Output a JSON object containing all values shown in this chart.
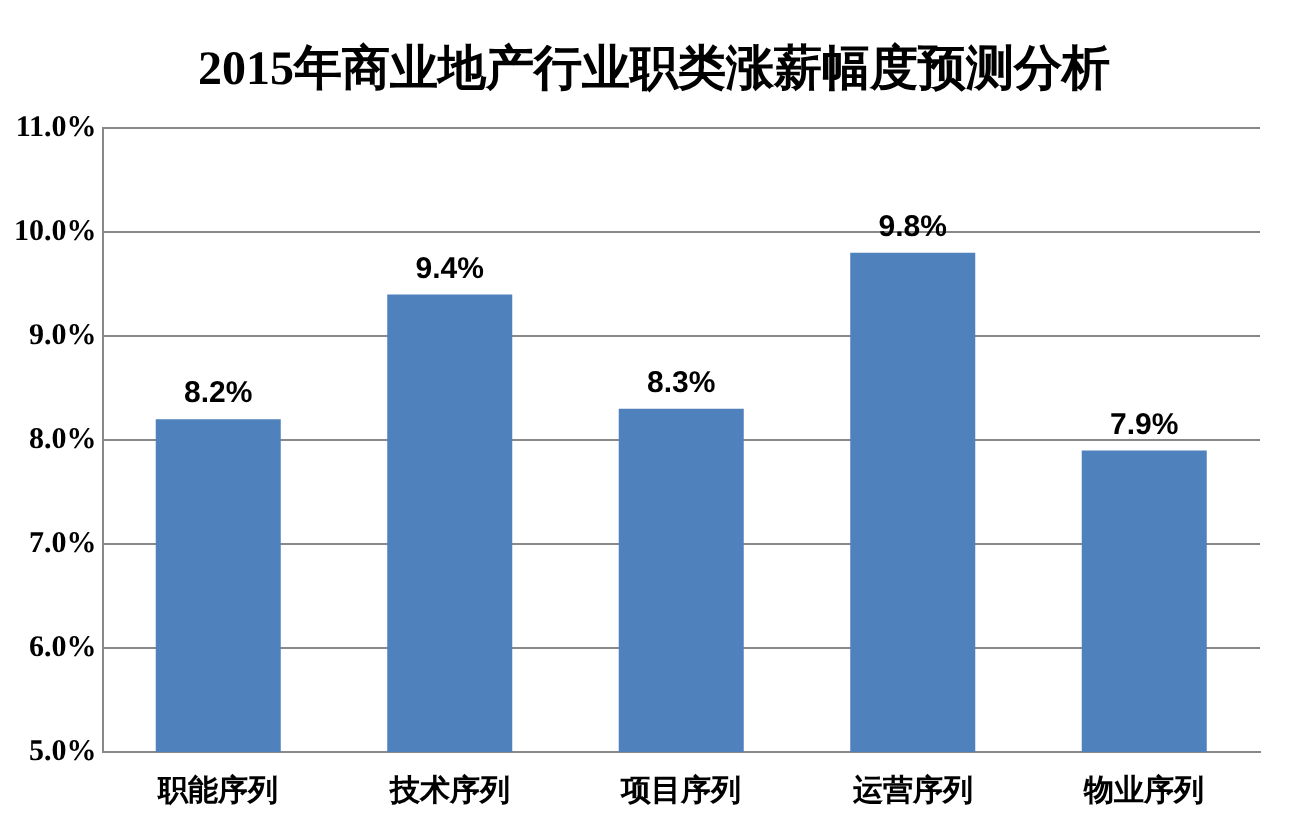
{
  "chart_data": {
    "type": "bar",
    "title": "2015年商业地产行业职类涨薪幅度预测分析",
    "categories": [
      "职能序列",
      "技术序列",
      "项目序列",
      "运营序列",
      "物业序列"
    ],
    "values": [
      8.2,
      9.4,
      8.3,
      9.8,
      7.9
    ],
    "value_labels": [
      "8.2%",
      "9.4%",
      "8.3%",
      "9.8%",
      "7.9%"
    ],
    "color": "#4f81bd",
    "ylim": [
      5,
      11
    ],
    "yticks": [
      {
        "value": 5,
        "label": "5.0%"
      },
      {
        "value": 6,
        "label": "6.0%"
      },
      {
        "value": 7,
        "label": "7.0%"
      },
      {
        "value": 8,
        "label": "8.0%"
      },
      {
        "value": 9,
        "label": "9.0%"
      },
      {
        "value": 10,
        "label": "10.0%"
      },
      {
        "value": 11,
        "label": "11.0%"
      }
    ],
    "grid": "y",
    "legend": false
  }
}
